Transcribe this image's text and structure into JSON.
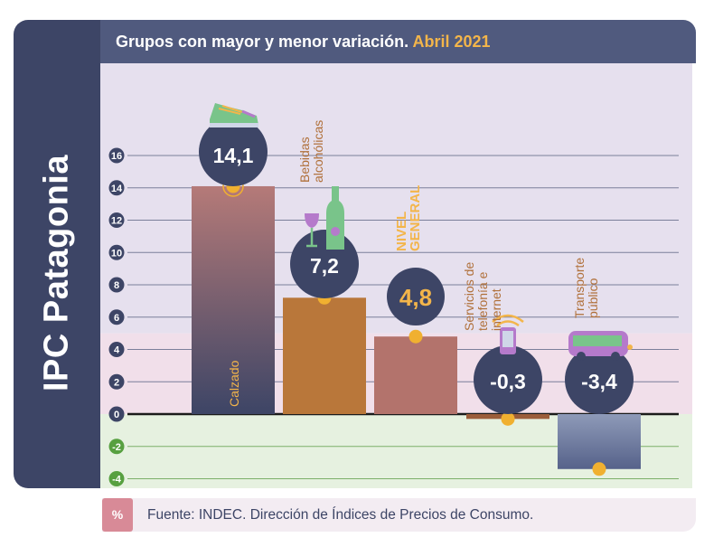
{
  "side_title": "IPC Patagonia",
  "header": {
    "title": "Grupos con mayor y menor variación.",
    "period": "Abril 2021"
  },
  "footer": {
    "badge": "%",
    "source": "Fuente: INDEC. Dirección de Índices de Precios de Consumo."
  },
  "chart_data": {
    "type": "bar",
    "categories": [
      "Calzado",
      "Bebidas alcohólicas",
      "NIVEL GENERAL",
      "Servicios de telefonía e internet",
      "Transporte público"
    ],
    "values": [
      14.1,
      7.2,
      4.8,
      -0.3,
      -3.4
    ],
    "value_labels": [
      "14,1",
      "7,2",
      "4,8",
      "-0,3",
      "-3,4"
    ],
    "category_labels": [
      [
        "Calzado"
      ],
      [
        "Bebidas",
        "alcohólicas"
      ],
      [
        "NIVEL",
        "GENERAL"
      ],
      [
        "Servicios de",
        "telefonía e",
        "internet"
      ],
      [
        "Transporte",
        "público"
      ]
    ],
    "yticks": [
      16,
      14,
      12,
      10,
      8,
      6,
      4,
      2,
      0,
      -2,
      -4
    ],
    "ylim": [
      -4.2,
      16.2
    ],
    "grid": true,
    "icons": [
      "sneaker-icon",
      "wine-bottle-glass-icon",
      "",
      "mobile-phone-icon",
      "bus-icon"
    ],
    "colors": {
      "plot_bg": "#e6e0ee",
      "band_low": "#f1dfea",
      "band_negative": "#e6f1e0",
      "bar_calzado_top": "#b57a78",
      "bar_calzado_bottom": "#3d4566",
      "bar_bebidas": "#b9773a",
      "bar_general": "#b3736c",
      "bar_telefonia": "#9b5d3a",
      "bar_transporte_top": "#8e9ab8",
      "bar_transporte_bottom": "#56628a",
      "dot": "#f0b030",
      "circle": "#3d4566",
      "tick_pos": "#3d4566",
      "tick_neg": "#57a040",
      "label_orange": "#f3b54a",
      "label_brown": "#b0703a"
    }
  }
}
